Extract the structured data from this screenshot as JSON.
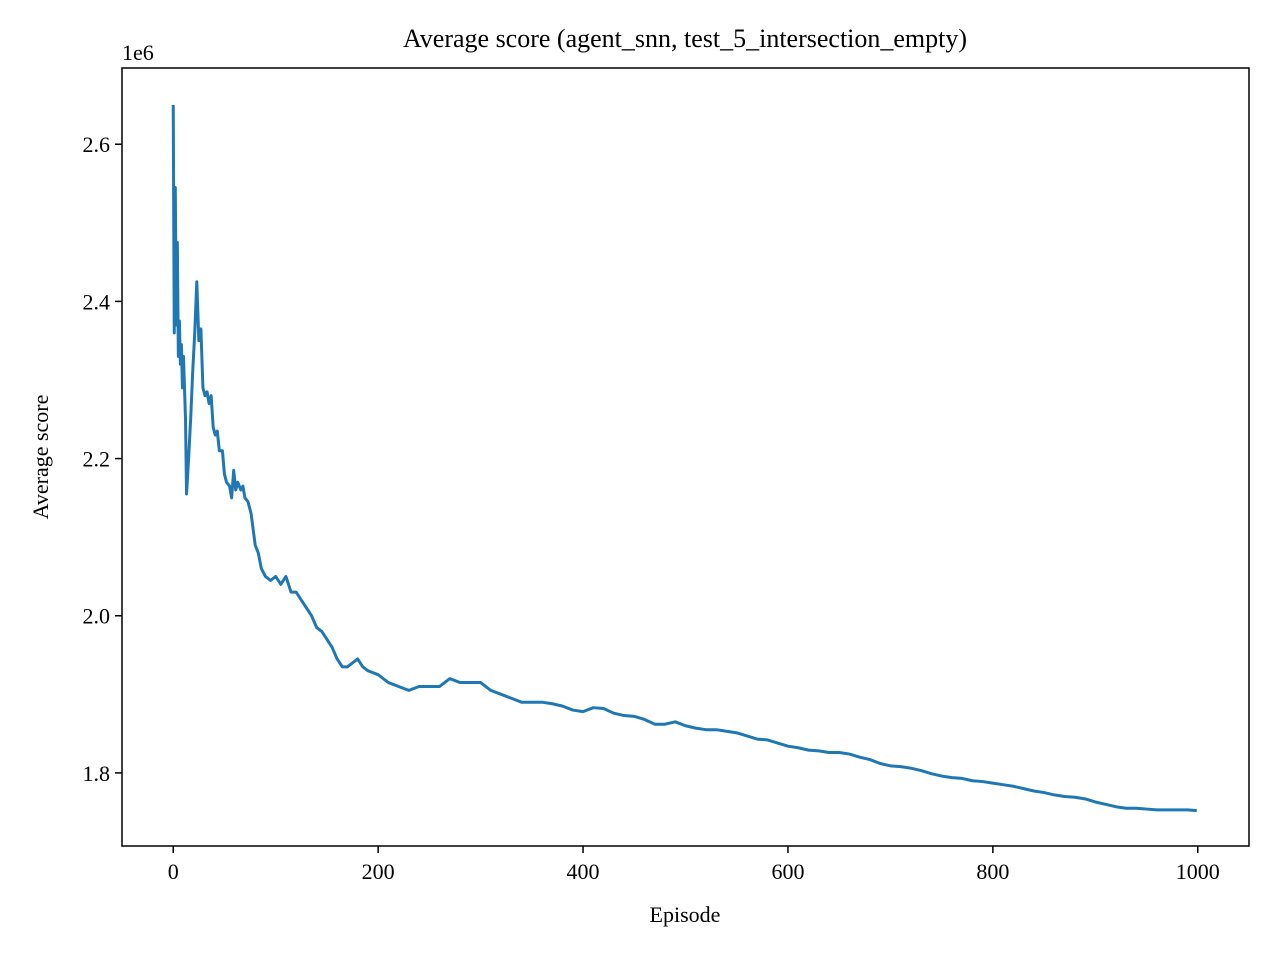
{
  "chart_data": {
    "type": "line",
    "title": "Average score (agent_snn, test_5_intersection_empty)",
    "x_label": "Episode",
    "y_label": "Average score",
    "y_offset_label": "1e6",
    "xlim": [
      -50,
      1050
    ],
    "ylim": [
      1.707,
      2.697
    ],
    "xticks": [
      0,
      200,
      400,
      600,
      800,
      1000
    ],
    "yticks": [
      {
        "value": 1.8,
        "label": "1.8"
      },
      {
        "value": 2.0,
        "label": "2.0"
      },
      {
        "value": 2.2,
        "label": "2.2"
      },
      {
        "value": 2.4,
        "label": "2.4"
      },
      {
        "value": 2.6,
        "label": "2.6"
      }
    ],
    "grid": false,
    "x": [
      0,
      1,
      2,
      3,
      4,
      5,
      6,
      7,
      8,
      9,
      10,
      12,
      13,
      15,
      17,
      19,
      21,
      23,
      25,
      27,
      29,
      31,
      33,
      35,
      37,
      39,
      41,
      43,
      45,
      48,
      50,
      52,
      55,
      57,
      59,
      61,
      63,
      66,
      68,
      70,
      73,
      76,
      78,
      80,
      83,
      86,
      90,
      95,
      100,
      105,
      110,
      115,
      120,
      125,
      130,
      135,
      140,
      145,
      150,
      155,
      160,
      165,
      170,
      175,
      180,
      185,
      190,
      200,
      210,
      220,
      230,
      240,
      250,
      260,
      270,
      280,
      290,
      300,
      310,
      320,
      330,
      340,
      350,
      360,
      370,
      380,
      390,
      400,
      410,
      420,
      430,
      440,
      450,
      460,
      470,
      480,
      490,
      500,
      510,
      520,
      530,
      540,
      550,
      560,
      570,
      580,
      590,
      600,
      610,
      620,
      630,
      640,
      650,
      660,
      670,
      680,
      690,
      700,
      710,
      720,
      730,
      740,
      750,
      760,
      770,
      780,
      790,
      800,
      810,
      820,
      830,
      840,
      850,
      860,
      870,
      880,
      890,
      900,
      910,
      920,
      930,
      940,
      950,
      960,
      970,
      980,
      990,
      999
    ],
    "series": [
      {
        "name": "Average score",
        "color": "#1f77b4",
        "values": [
          2.65,
          2.36,
          2.545,
          2.37,
          2.475,
          2.33,
          2.375,
          2.32,
          2.345,
          2.29,
          2.33,
          2.25,
          2.155,
          2.2,
          2.25,
          2.31,
          2.36,
          2.425,
          2.35,
          2.365,
          2.29,
          2.28,
          2.285,
          2.27,
          2.28,
          2.24,
          2.23,
          2.235,
          2.21,
          2.21,
          2.18,
          2.17,
          2.165,
          2.15,
          2.185,
          2.16,
          2.17,
          2.16,
          2.165,
          2.15,
          2.145,
          2.13,
          2.11,
          2.09,
          2.08,
          2.06,
          2.05,
          2.045,
          2.05,
          2.04,
          2.05,
          2.03,
          2.03,
          2.02,
          2.01,
          2.0,
          1.985,
          1.98,
          1.97,
          1.96,
          1.945,
          1.935,
          1.935,
          1.94,
          1.945,
          1.935,
          1.93,
          1.925,
          1.915,
          1.91,
          1.905,
          1.91,
          1.91,
          1.91,
          1.92,
          1.915,
          1.915,
          1.915,
          1.905,
          1.9,
          1.895,
          1.89,
          1.89,
          1.89,
          1.888,
          1.885,
          1.88,
          1.878,
          1.883,
          1.882,
          1.876,
          1.873,
          1.872,
          1.868,
          1.862,
          1.862,
          1.865,
          1.86,
          1.857,
          1.855,
          1.855,
          1.853,
          1.851,
          1.847,
          1.843,
          1.842,
          1.838,
          1.834,
          1.832,
          1.829,
          1.828,
          1.826,
          1.826,
          1.824,
          1.82,
          1.817,
          1.812,
          1.809,
          1.808,
          1.806,
          1.803,
          1.799,
          1.796,
          1.794,
          1.793,
          1.79,
          1.789,
          1.787,
          1.785,
          1.783,
          1.78,
          1.777,
          1.775,
          1.772,
          1.77,
          1.769,
          1.767,
          1.763,
          1.76,
          1.757,
          1.755,
          1.755,
          1.754,
          1.753,
          1.753,
          1.753,
          1.753,
          1.752
        ]
      }
    ]
  }
}
